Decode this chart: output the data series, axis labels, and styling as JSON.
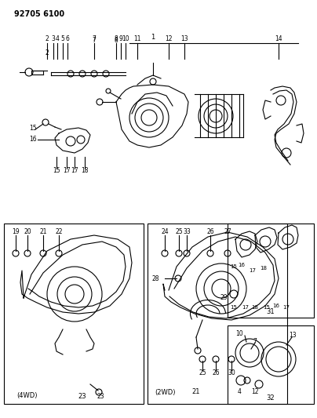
{
  "title": "92705 6100",
  "bg_color": "#ffffff",
  "line_color": "#000000",
  "fig_width": 4.04,
  "fig_height": 5.33,
  "dpi": 100
}
